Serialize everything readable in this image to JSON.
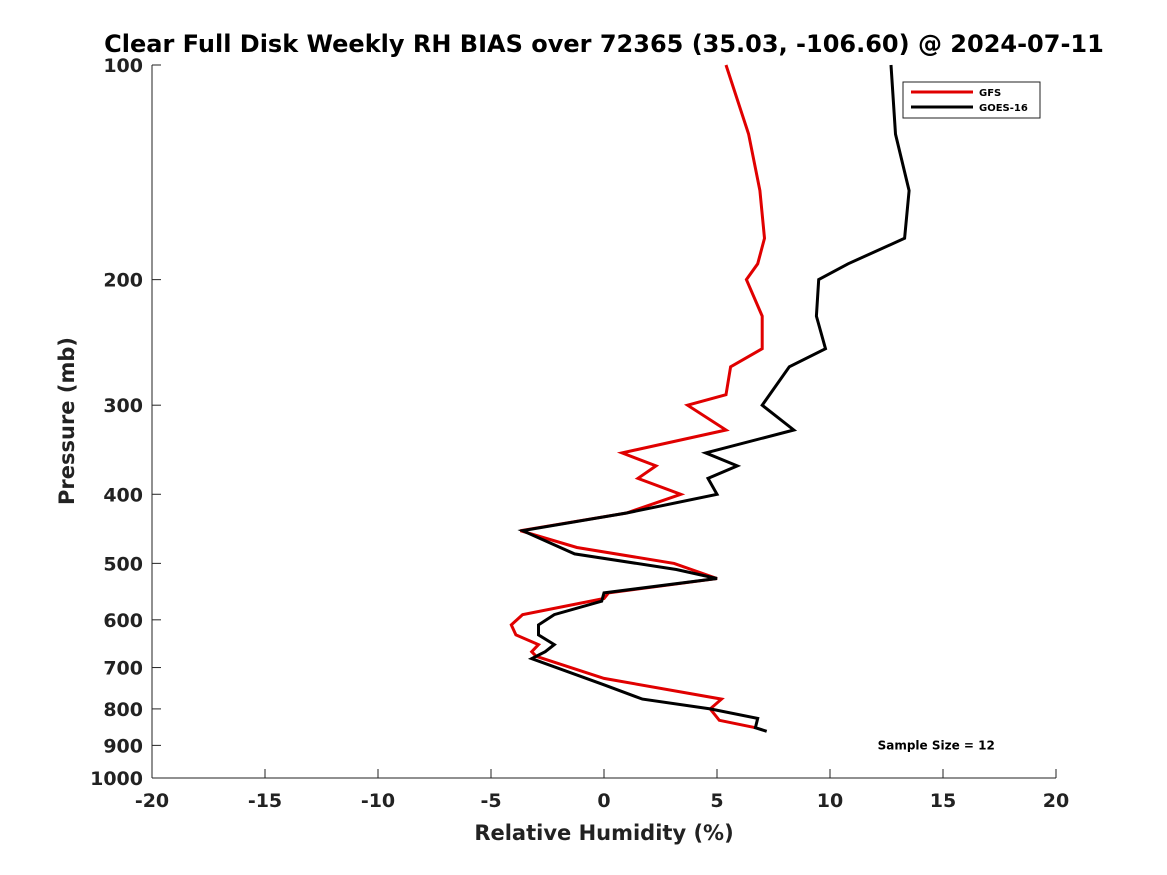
{
  "chart_data": {
    "type": "line",
    "title": "Clear Full Disk Weekly RH BIAS over 72365 (35.03, -106.60) @ 2024-07-11",
    "xlabel": "Relative Humidity (%)",
    "ylabel": "Pressure (mb)",
    "xlim": [
      -20,
      20
    ],
    "ylim": [
      100,
      1000
    ],
    "y_scale": "log",
    "y_reversed": true,
    "x_ticks": [
      "-20",
      "-15",
      "-10",
      "-5",
      "0",
      "5",
      "10",
      "15",
      "20"
    ],
    "y_ticks": [
      "100",
      "200",
      "300",
      "400",
      "500",
      "600",
      "700",
      "800",
      "900",
      "1000"
    ],
    "grid": false,
    "legend_position": "top-right",
    "series": [
      {
        "name": "GFS",
        "color": "#e00000",
        "points": [
          [
            5.4,
            100
          ],
          [
            6.4,
            125
          ],
          [
            6.9,
            150
          ],
          [
            7.1,
            175
          ],
          [
            6.8,
            190
          ],
          [
            6.3,
            200
          ],
          [
            7.0,
            225
          ],
          [
            7.0,
            250
          ],
          [
            5.6,
            265
          ],
          [
            5.4,
            290
          ],
          [
            3.7,
            300
          ],
          [
            5.4,
            325
          ],
          [
            0.8,
            350
          ],
          [
            2.3,
            365
          ],
          [
            1.5,
            380
          ],
          [
            3.4,
            400
          ],
          [
            1.0,
            425
          ],
          [
            -3.7,
            450
          ],
          [
            -1.2,
            475
          ],
          [
            3.1,
            500
          ],
          [
            5.0,
            525
          ],
          [
            0.2,
            550
          ],
          [
            0.0,
            560
          ],
          [
            -3.6,
            590
          ],
          [
            -4.1,
            610
          ],
          [
            -3.9,
            630
          ],
          [
            -2.9,
            650
          ],
          [
            -3.2,
            665
          ],
          [
            -3.0,
            675
          ],
          [
            0.0,
            725
          ],
          [
            5.2,
            775
          ],
          [
            4.7,
            800
          ],
          [
            5.1,
            830
          ],
          [
            6.7,
            850
          ]
        ]
      },
      {
        "name": "GOES-16",
        "color": "#000000",
        "points": [
          [
            12.7,
            100
          ],
          [
            12.9,
            125
          ],
          [
            13.5,
            150
          ],
          [
            13.3,
            175
          ],
          [
            10.8,
            190
          ],
          [
            9.5,
            200
          ],
          [
            9.4,
            225
          ],
          [
            9.8,
            250
          ],
          [
            8.2,
            265
          ],
          [
            7.0,
            300
          ],
          [
            8.4,
            325
          ],
          [
            4.5,
            350
          ],
          [
            5.9,
            365
          ],
          [
            4.6,
            380
          ],
          [
            5.0,
            400
          ],
          [
            1.0,
            425
          ],
          [
            -3.6,
            450
          ],
          [
            -1.3,
            485
          ],
          [
            3.2,
            510
          ],
          [
            5.0,
            525
          ],
          [
            0.0,
            550
          ],
          [
            -0.1,
            565
          ],
          [
            -2.2,
            590
          ],
          [
            -2.9,
            610
          ],
          [
            -2.9,
            630
          ],
          [
            -2.2,
            650
          ],
          [
            -2.6,
            665
          ],
          [
            -3.2,
            680
          ],
          [
            0.0,
            740
          ],
          [
            1.7,
            775
          ],
          [
            4.7,
            800
          ],
          [
            6.8,
            825
          ],
          [
            6.7,
            850
          ],
          [
            7.2,
            860
          ]
        ]
      }
    ],
    "annotations": [
      {
        "text": "Sample Size = 12",
        "x": 14.7,
        "y": 900
      }
    ]
  }
}
